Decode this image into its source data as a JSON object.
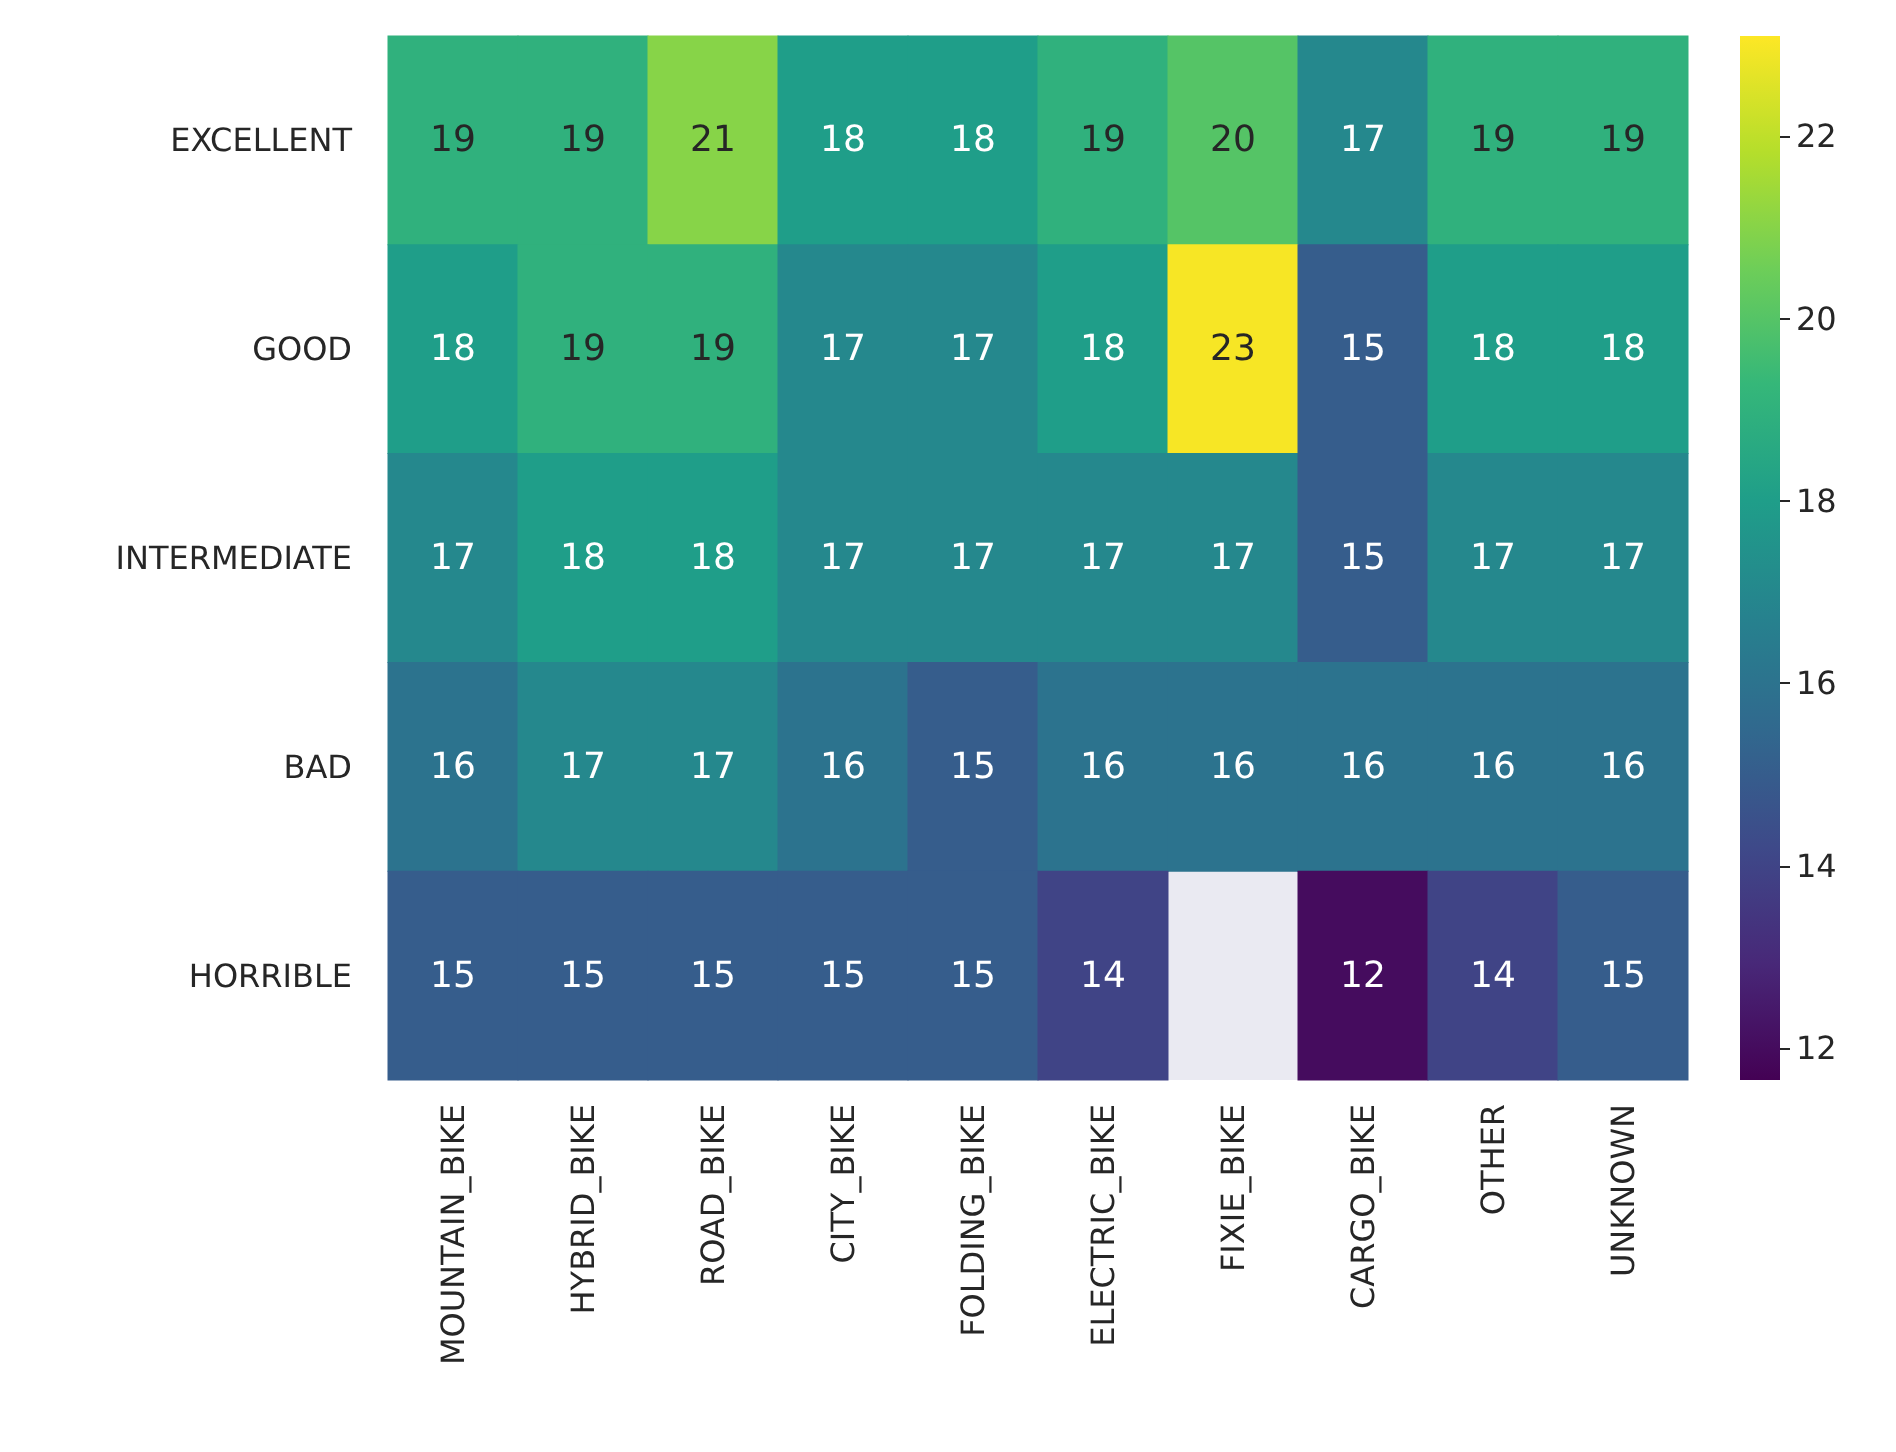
{
  "chart_data": {
    "type": "heatmap",
    "categories": [
      "MOUNTAIN_BIKE",
      "HYBRID_BIKE",
      "ROAD_BIKE",
      "CITY_BIKE",
      "FOLDING_BIKE",
      "ELECTRIC_BIKE",
      "FIXIE_BIKE",
      "CARGO_BIKE",
      "OTHER",
      "UNKNOWN"
    ],
    "y_categories": [
      "EXCELLENT",
      "GOOD",
      "INTERMEDIATE",
      "BAD",
      "HORRIBLE"
    ],
    "cells": [
      [
        19,
        19,
        21,
        18,
        18,
        19,
        20,
        17,
        19,
        19
      ],
      [
        18,
        19,
        19,
        17,
        17,
        18,
        23,
        15,
        18,
        18
      ],
      [
        17,
        18,
        18,
        17,
        17,
        17,
        17,
        15,
        17,
        17
      ],
      [
        16,
        17,
        17,
        16,
        15,
        16,
        16,
        16,
        16,
        16
      ],
      [
        15,
        15,
        15,
        15,
        15,
        14,
        null,
        12,
        14,
        15
      ]
    ],
    "data_labels": true,
    "clim": [
      11.65,
      23.1
    ],
    "cticks": [
      12,
      14,
      16,
      18,
      20,
      22
    ]
  }
}
